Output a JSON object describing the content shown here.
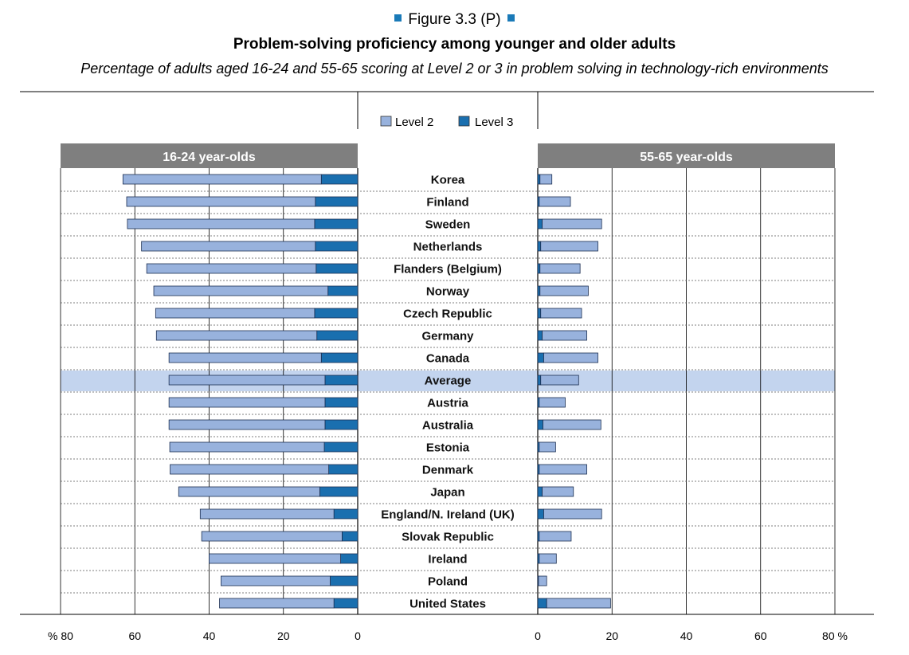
{
  "figure_label": "Figure 3.3 (P)",
  "title": "Problem-solving proficiency among younger and older adults",
  "subtitle": "Percentage of adults aged 16-24 and 55-65 scoring at Level 2 or 3 in problem solving in technology-rich environments",
  "colors": {
    "level2": "#98b2dd",
    "level3": "#1a6faf",
    "header": "#7f7f7f",
    "highlight": "#c3d4ee"
  },
  "chart_data": {
    "type": "bar",
    "orientation": "horizontal",
    "stacked": true,
    "legend": [
      "Level 2",
      "Level 3"
    ],
    "panels": [
      {
        "title": "16-24 year-olds",
        "direction": "reversed",
        "xlim": [
          0,
          80
        ]
      },
      {
        "title": "55-65 year-olds",
        "direction": "normal",
        "xlim": [
          0,
          80
        ]
      }
    ],
    "x_ticks_left": [
      "% 80",
      "60",
      "40",
      "20",
      "0"
    ],
    "x_ticks_right": [
      "0",
      "20",
      "40",
      "60",
      "80 %"
    ],
    "highlight_category": "Average",
    "categories": [
      "Korea",
      "Finland",
      "Sweden",
      "Netherlands",
      "Flanders (Belgium)",
      "Norway",
      "Czech Republic",
      "Germany",
      "Canada",
      "Average",
      "Austria",
      "Australia",
      "Estonia",
      "Denmark",
      "Japan",
      "England/N. Ireland (UK)",
      "Slovak Republic",
      "Ireland",
      "Poland",
      "United States"
    ],
    "series": [
      {
        "name": "Level 2",
        "group": "16-24 year-olds",
        "values": [
          53.4,
          50.8,
          50.4,
          46.8,
          45.6,
          46.9,
          42.8,
          43.2,
          41.0,
          42.0,
          42.0,
          42.0,
          41.6,
          42.7,
          38.0,
          36.0,
          37.8,
          35.4,
          29.4,
          30.8
        ]
      },
      {
        "name": "Level 3",
        "group": "16-24 year-olds",
        "values": [
          9.8,
          11.4,
          11.6,
          11.4,
          11.2,
          8.0,
          11.6,
          11.0,
          9.8,
          8.8,
          8.8,
          8.8,
          9.0,
          7.8,
          10.2,
          6.4,
          4.2,
          4.6,
          7.4,
          6.4
        ]
      },
      {
        "name": "Level 2",
        "group": "55-65 year-olds",
        "values": [
          3.2,
          8.4,
          16.0,
          15.4,
          10.8,
          13.0,
          11.0,
          12.0,
          14.6,
          10.2,
          7.0,
          15.6,
          4.4,
          12.8,
          8.4,
          15.6,
          8.6,
          4.6,
          2.2,
          17.2
        ]
      },
      {
        "name": "Level 3",
        "group": "55-65 year-olds",
        "values": [
          0.6,
          0.4,
          1.2,
          0.8,
          0.6,
          0.6,
          0.8,
          1.2,
          1.6,
          0.8,
          0.4,
          1.4,
          0.4,
          0.4,
          1.2,
          1.6,
          0.4,
          0.4,
          0.2,
          2.4
        ]
      }
    ]
  }
}
